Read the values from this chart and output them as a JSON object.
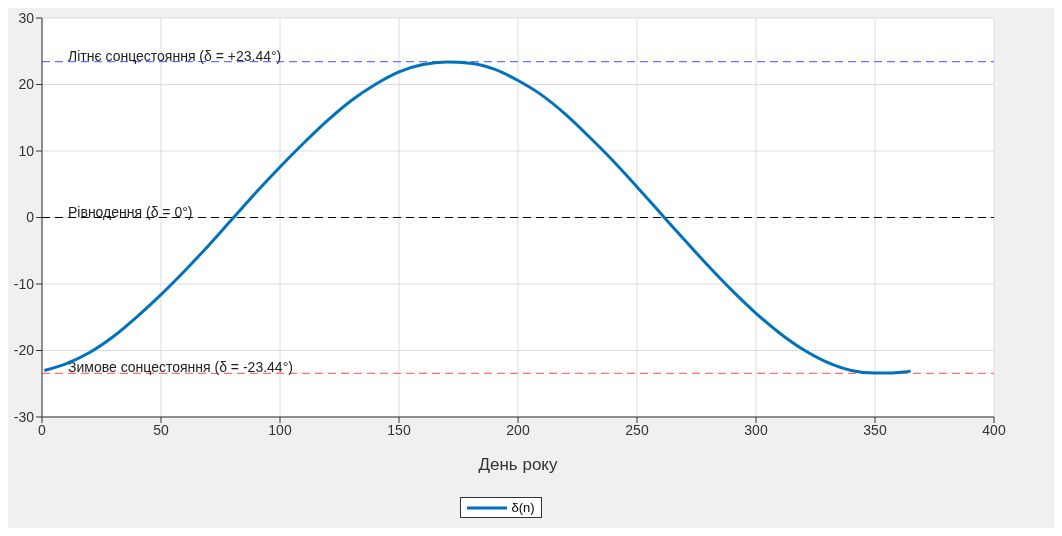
{
  "chart_data": {
    "type": "line",
    "xlabel": "День року",
    "x": [
      1,
      10,
      20,
      30,
      40,
      50,
      60,
      70,
      80,
      90,
      100,
      110,
      120,
      130,
      140,
      150,
      160,
      170,
      180,
      190,
      200,
      210,
      220,
      230,
      240,
      250,
      260,
      270,
      280,
      290,
      300,
      310,
      320,
      330,
      340,
      350,
      355,
      360,
      365
    ],
    "series": [
      {
        "name": "δ(n)",
        "color": "#0072bd",
        "values": [
          -23.0,
          -22.0,
          -20.3,
          -17.9,
          -14.9,
          -11.6,
          -8.0,
          -4.2,
          -0.2,
          3.8,
          7.6,
          11.2,
          14.6,
          17.6,
          20.0,
          21.9,
          23.0,
          23.4,
          23.2,
          22.3,
          20.6,
          18.4,
          15.5,
          12.1,
          8.5,
          4.6,
          0.6,
          -3.4,
          -7.3,
          -11.0,
          -14.4,
          -17.4,
          -19.9,
          -21.8,
          -23.0,
          -23.4,
          -23.4,
          -23.3,
          -23.1
        ]
      }
    ],
    "xlim": [
      0,
      400
    ],
    "xticks": [
      0,
      50,
      100,
      150,
      200,
      250,
      300,
      350,
      400
    ],
    "ylim": [
      -30,
      30
    ],
    "yticks": [
      -30,
      -20,
      -10,
      0,
      10,
      20,
      30
    ],
    "ref_lines": [
      {
        "axis": "y",
        "value": 23.44,
        "label": "Літнє сонцестояння (δ = +23.44°)",
        "color": "#6f6fff",
        "line_style": "dashed"
      },
      {
        "axis": "y",
        "value": 0,
        "label": "Рівнодення (δ = 0°)",
        "color": "#000000",
        "line_style": "dashed"
      },
      {
        "axis": "y",
        "value": -23.44,
        "label": "Зимове сонцестояння (δ = -23.44°)",
        "color": "#ff6f6f",
        "line_style": "dashed"
      }
    ],
    "grid": true,
    "legend": "bottom",
    "marker": "none",
    "line_style": "solid"
  }
}
